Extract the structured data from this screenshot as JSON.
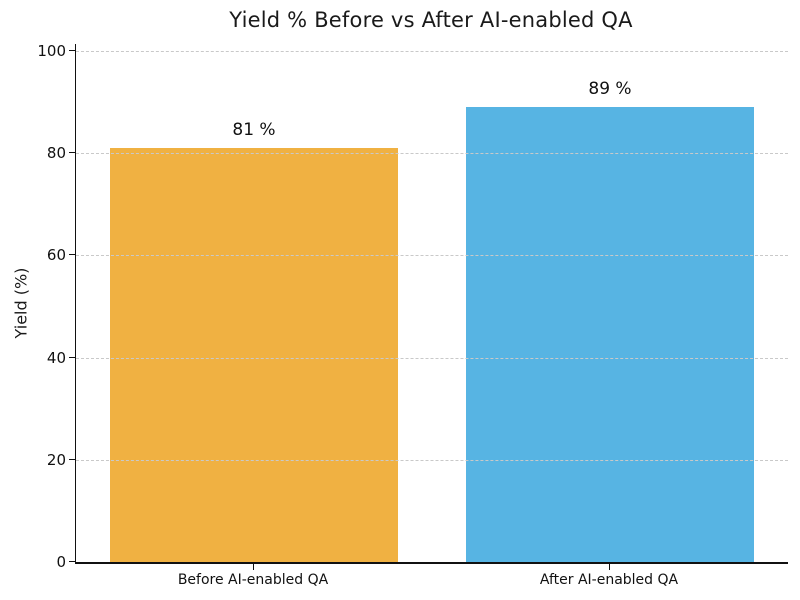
{
  "chart_data": {
    "type": "bar",
    "title": "Yield % Before vs After AI-enabled QA",
    "xlabel": "",
    "ylabel": "Yield (%)",
    "categories": [
      "Before AI-enabled QA",
      "After AI-enabled QA"
    ],
    "values": [
      81,
      89
    ],
    "value_labels": [
      "81 %",
      "89 %"
    ],
    "bar_colors": [
      "#F0B142",
      "#57B4E3"
    ],
    "yticks": [
      0,
      20,
      40,
      60,
      80,
      100
    ],
    "ylim": [
      0,
      101.5
    ],
    "grid": "horizontal-dashed",
    "grid_color": "#c9c9c9",
    "legend": "none",
    "text_color": "#111111"
  }
}
